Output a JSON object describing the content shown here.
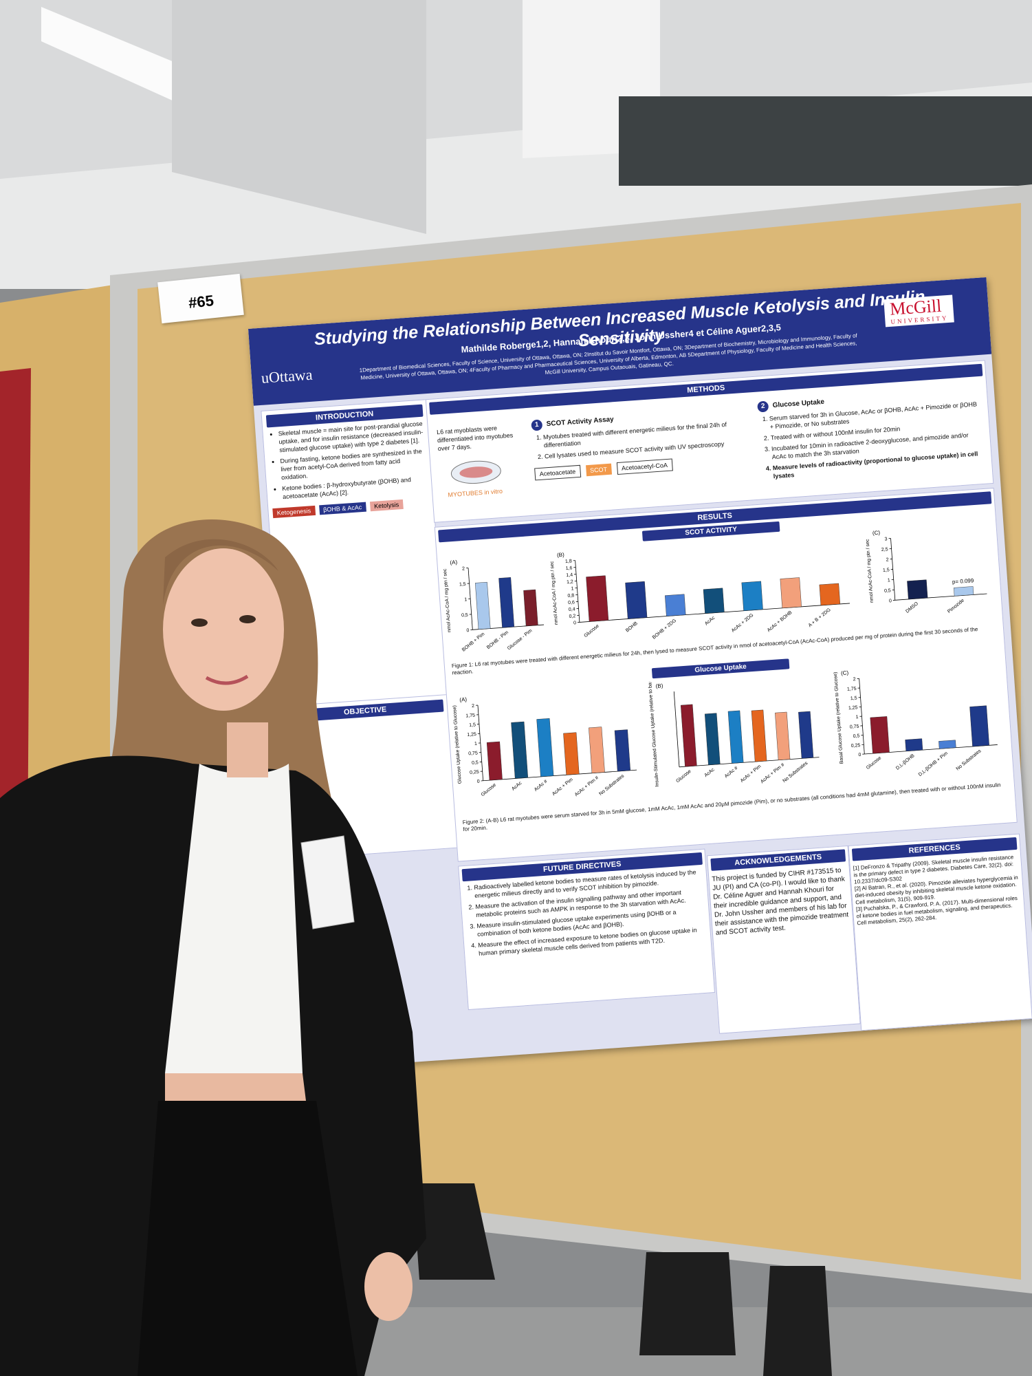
{
  "sign": "#65",
  "poster": {
    "title": "Studying the Relationship Between Increased Muscle Ketolysis and Insulin Sensitivity",
    "authors": "Mathilde Roberge1,2, Hannah Khouri2,3, John Ussher4 et Céline Aguer2,3,5",
    "affiliations": "1Department of Biomedical Sciences, Faculty of Science, University of Ottawa, Ottawa, ON; 2Institut du Savoir Montfort, Ottawa, ON; 3Department of Biochemistry, Microbiology and Immunology, Faculty of Medicine, University of Ottawa, Ottawa, ON; 4Faculty of Pharmacy and Pharmaceutical Sciences, University of Alberta, Edmonton, AB 5Department of Physiology, Faculty of Medicine and Health Sciences, McGill University, Campus Outaouais, Gatineau, QC.",
    "logo_left": "uOttawa",
    "logo_right": "McGill",
    "logo_right_sub": "UNIVERSITY",
    "introduction": {
      "heading": "INTRODUCTION",
      "bullets": [
        "Skeletal muscle = main site for post-prandial glucose uptake, and for insulin resistance (decreased insulin-stimulated glucose uptake) with type 2 diabetes [1].",
        "During fasting, ketone bodies are synthesized in the liver from acetyl-CoA derived from fatty acid oxidation.",
        "Ketone bodies : β-hydroxybutyrate (βOHB) and acetoacetate (AcAc) [2]."
      ],
      "diagram": [
        "Ketogenesis",
        "βOHB & AcAc",
        "Ketolysis"
      ]
    },
    "objective": {
      "heading": "OBJECTIVE"
    },
    "methods": {
      "heading": "METHODS",
      "intro": "L6 rat myoblasts were differentiated into myotubes over 7 days.",
      "caption": "MYOTUBES in vitro",
      "steps": [
        {
          "number": "1",
          "title": "SCOT Activity Assay",
          "items": [
            "Myotubes treated with different energetic milieus for the final 24h of differentiation",
            "Cell lysates used to measure SCOT activity with UV spectroscopy"
          ],
          "diagram": [
            "Acetoacetate",
            "SCOT",
            "Acetoacetyl-CoA"
          ]
        },
        {
          "number": "2",
          "title": "Glucose Uptake",
          "items": [
            "Serum starved for 3h in Glucose, AcAc or βOHB, AcAc + Pimozide or βOHB + Pimozide, or No substrates",
            "Treated with or without 100nM insulin for 20min",
            "Incubated for 10min in radioactive 2-deoxyglucose, and pimozide and/or AcAc to match the 3h starvation",
            "Measure levels of radioactivity (proportional to glucose uptake) in cell lysates"
          ]
        }
      ]
    },
    "results": {
      "heading": "RESULTS",
      "subheadings": [
        "SCOT ACTIVITY",
        "Glucose Uptake"
      ],
      "captions": [
        "Figure 1: L6 rat myotubes were treated with different energetic milieus for 24h, then lysed to measure SCOT activity in nmol of acetoacetyl-CoA (AcAc-CoA) produced per mg of protein during the first 30 seconds of the reaction.",
        "Figure 2: (A-B) L6 rat myotubes were serum starved for 3h in 5mM glucose, 1mM AcAc, 1mM AcAc and 20μM pimozide (Pim), or no substrates (all conditions had 4mM glutamine), then treated with or without 100nM insulin for 20min."
      ],
      "charts": [
        {
          "panel": "(A)",
          "ylabel": "nmol AcAc-CoA / mg ptn / sec",
          "categories": [
            "BOHB + Pim",
            "BOHB - Pim",
            "Glucose - Pim"
          ],
          "values": [
            1.5,
            1.6,
            1.15
          ],
          "colors": [
            "#a9c8ec",
            "#1f3a8a",
            "#7a1f2b"
          ],
          "ylim": [
            0,
            2
          ],
          "yticks": [
            0,
            {
              "value": 0.5,
              "label": "0,5"
            },
            1,
            {
              "value": 1.5,
              "label": "1,5"
            },
            2
          ]
        },
        {
          "panel": "(B)",
          "ylabel": "nmol AcAc-CoA / mg ptn / sec",
          "categories": [
            "Glucose",
            "BOHB",
            "BOHB + 2DG",
            "AcAc",
            "AcAc + 2DG",
            "AcAc + BOHB",
            "A + B + 2DG"
          ],
          "values": [
            1.3,
            1.05,
            0.6,
            0.7,
            0.82,
            0.85,
            0.6
          ],
          "colors": [
            "#8b1c2c",
            "#1f3a8a",
            "#4a7fd4",
            "#124f7a",
            "#1c7fc4",
            "#f2a07b",
            "#e4661f"
          ],
          "ylim": [
            0,
            1.8
          ],
          "yticks": [
            0,
            {
              "value": 0.2,
              "label": "0,2"
            },
            {
              "value": 0.4,
              "label": "0,4"
            },
            {
              "value": 0.6,
              "label": "0,6"
            },
            {
              "value": 0.8,
              "label": "0,8"
            },
            1,
            {
              "value": 1.2,
              "label": "1,2"
            },
            {
              "value": 1.4,
              "label": "1,4"
            },
            {
              "value": 1.6,
              "label": "1,6"
            },
            {
              "value": 1.8,
              "label": "1,8"
            }
          ]
        },
        {
          "panel": "(C)",
          "ylabel": "nmol AcAc-CoA / mg ptn / sec",
          "categories": [
            "DMSO",
            "Pimozide"
          ],
          "values": [
            0.88,
            0.4
          ],
          "colors": [
            "#14214f",
            "#a9c8ec"
          ],
          "ylim": [
            0,
            3
          ],
          "annotation": "p= 0.099",
          "yticks": [
            0,
            {
              "value": 0.5,
              "label": "0,5"
            },
            1,
            {
              "value": 1.5,
              "label": "1,5"
            },
            2,
            {
              "value": 2.5,
              "label": "2,5"
            },
            3
          ]
        },
        {
          "panel": "(A)",
          "ylabel": "Glucose Uptake (relative to Glucose)",
          "categories": [
            "Glucose",
            "AcAc",
            "AcAc #",
            "AcAc + Pim",
            "AcAc + Pim #",
            "No Substrates"
          ],
          "values": [
            1,
            1.48,
            1.52,
            1.1,
            1.2,
            1.08
          ],
          "colors": [
            "#8b1c2c",
            "#124f7a",
            "#1c7fc4",
            "#e4661f",
            "#f2a07b",
            "#1f3a8a"
          ],
          "ylim": [
            0,
            2
          ],
          "yticks": [
            0,
            {
              "value": 0.25,
              "label": "0,25"
            },
            {
              "value": 0.5,
              "label": "0,5"
            },
            {
              "value": 0.75,
              "label": "0,75"
            },
            1,
            {
              "value": 1.25,
              "label": "1,25"
            },
            {
              "value": 1.5,
              "label": "1,5"
            },
            {
              "value": 1.75,
              "label": "1,75"
            },
            2
          ]
        },
        {
          "panel": "(B)",
          "ylabel": "Insulin-Stimulated Glucose Uptake (relative to basal)",
          "categories": [
            "Glucose",
            "AcAc",
            "AcAc #",
            "AcAc + Pim",
            "AcAc + Pim #",
            "No Substrates"
          ],
          "values": [
            1.3,
            1.08,
            1.1,
            1.08,
            1.0,
            0.98
          ],
          "colors": [
            "#8b1c2c",
            "#124f7a",
            "#1c7fc4",
            "#e4661f",
            "#f2a07b",
            "#1f3a8a"
          ],
          "ylim": [
            0,
            1.6
          ]
        },
        {
          "panel": "(C)",
          "ylabel": "Basal Glucose Uptake (relative to Glucose)",
          "categories": [
            "Glucose",
            "D,L-βOHB",
            "D,L-βOHB + Pim",
            "No Substrates"
          ],
          "values": [
            0.95,
            0.3,
            0.2,
            1.05
          ],
          "colors": [
            "#8b1c2c",
            "#1f3a8a",
            "#4a7fd4",
            "#1f3a8a"
          ],
          "ylim": [
            0,
            2
          ],
          "yticks": [
            0,
            {
              "value": 0.25,
              "label": "0,25"
            },
            {
              "value": 0.5,
              "label": "0,5"
            },
            {
              "value": 0.75,
              "label": "0,75"
            },
            1,
            {
              "value": 1.25,
              "label": "1,25"
            },
            {
              "value": 1.5,
              "label": "1,5"
            },
            {
              "value": 1.75,
              "label": "1,75"
            },
            2
          ]
        }
      ]
    },
    "future": {
      "heading": "FUTURE DIRECTIVES",
      "items": [
        "Radioactively labelled ketone bodies to measure rates of ketolysis induced by the energetic milieus directly and to verify SCOT inhibition by pimozide.",
        "Measure the activation of the insulin signalling pathway and other important metabolic proteins such as AMPK in response to the 3h starvation with AcAc.",
        "Measure insulin-stimulated glucose uptake experiments using βOHB or a combination of both ketone bodies (AcAc and βOHB).",
        "Measure the effect of increased exposure to ketone bodies on glucose uptake in human primary skeletal muscle cells derived from patients with T2D."
      ]
    },
    "acknowledgements": {
      "heading": "ACKNOWLEDGEMENTS",
      "text": "This project is funded by CIHR #173515 to JU (PI) and CA (co-PI). I would like to thank Dr. Céline Aguer and Hannah Khouri for their incredible guidance and support, and Dr. John Ussher and members of his lab for their assistance with the pimozide treatment and SCOT activity test."
    },
    "references": {
      "heading": "REFERENCES",
      "items": [
        "[1] DeFronzo & Tripathy (2009). Skeletal muscle insulin resistance is the primary defect in type 2 diabetes. Diabetes Care, 32(2). doi: 10.2337/dc09-S302",
        "[2] Al Batran, R., et al. (2020). Pimozide alleviates hyperglycemia in diet-induced obesity by inhibiting skeletal muscle ketone oxidation. Cell metabolism, 31(5), 909-919.",
        "[3] Puchalska, P., & Crawford, P. A. (2017). Multi-dimensional roles of ketone bodies in fuel metabolism, signaling, and therapeutics. Cell metabolism, 25(2), 262-284."
      ]
    }
  }
}
